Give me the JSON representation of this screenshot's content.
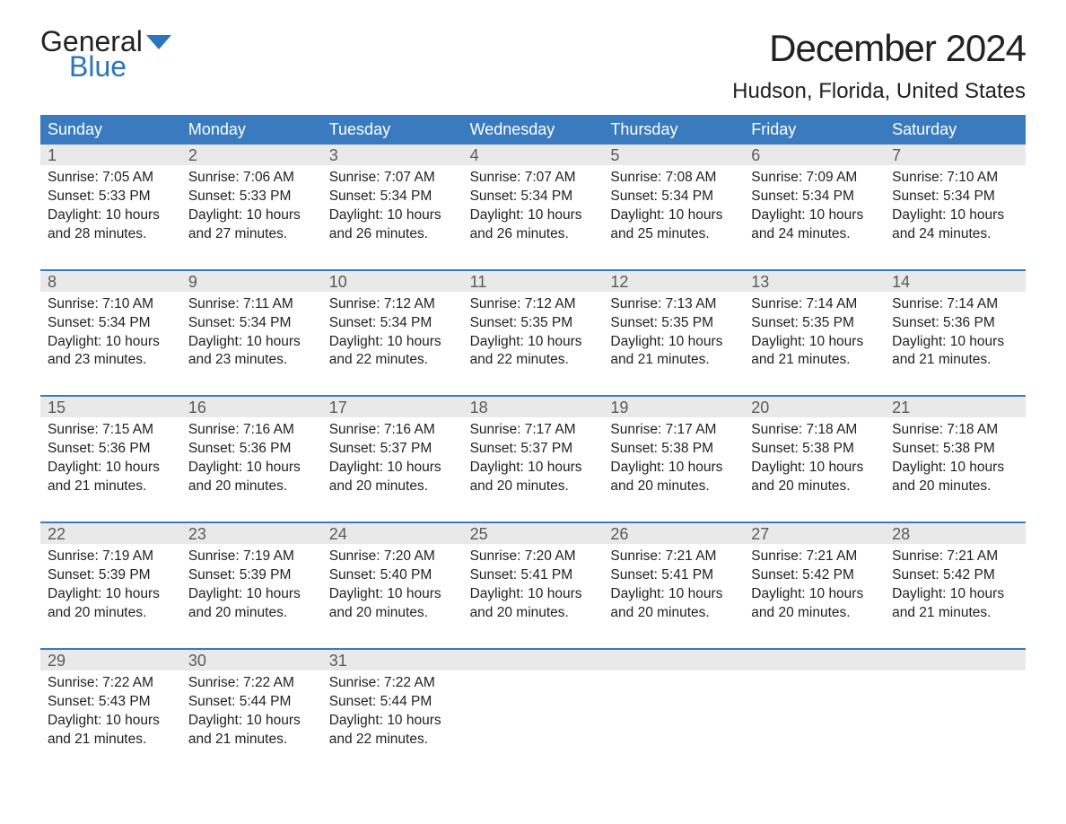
{
  "logo": {
    "line1": "General",
    "line2": "Blue",
    "color_general": "#222222",
    "color_blue": "#2a75bb",
    "flag_fill": "#2a75bb"
  },
  "header": {
    "month_title": "December 2024",
    "location": "Hudson, Florida, United States"
  },
  "styling": {
    "header_bg": "#3a7bbf",
    "header_text": "#ffffff",
    "daynum_bg": "#e9e9e9",
    "daynum_color": "#5a5a5a",
    "body_text": "#222222",
    "week_border": "#3a7bbf",
    "background": "#ffffff",
    "font_family": "Arial, Helvetica, sans-serif",
    "month_title_fontsize": 42,
    "location_fontsize": 24,
    "dayheader_fontsize": 18,
    "daynum_fontsize": 18,
    "daydata_fontsize": 15.5
  },
  "day_names": [
    "Sunday",
    "Monday",
    "Tuesday",
    "Wednesday",
    "Thursday",
    "Friday",
    "Saturday"
  ],
  "weeks": [
    [
      {
        "num": "1",
        "sunrise": "7:05 AM",
        "sunset": "5:33 PM",
        "daylight": "10 hours and 28 minutes."
      },
      {
        "num": "2",
        "sunrise": "7:06 AM",
        "sunset": "5:33 PM",
        "daylight": "10 hours and 27 minutes."
      },
      {
        "num": "3",
        "sunrise": "7:07 AM",
        "sunset": "5:34 PM",
        "daylight": "10 hours and 26 minutes."
      },
      {
        "num": "4",
        "sunrise": "7:07 AM",
        "sunset": "5:34 PM",
        "daylight": "10 hours and 26 minutes."
      },
      {
        "num": "5",
        "sunrise": "7:08 AM",
        "sunset": "5:34 PM",
        "daylight": "10 hours and 25 minutes."
      },
      {
        "num": "6",
        "sunrise": "7:09 AM",
        "sunset": "5:34 PM",
        "daylight": "10 hours and 24 minutes."
      },
      {
        "num": "7",
        "sunrise": "7:10 AM",
        "sunset": "5:34 PM",
        "daylight": "10 hours and 24 minutes."
      }
    ],
    [
      {
        "num": "8",
        "sunrise": "7:10 AM",
        "sunset": "5:34 PM",
        "daylight": "10 hours and 23 minutes."
      },
      {
        "num": "9",
        "sunrise": "7:11 AM",
        "sunset": "5:34 PM",
        "daylight": "10 hours and 23 minutes."
      },
      {
        "num": "10",
        "sunrise": "7:12 AM",
        "sunset": "5:34 PM",
        "daylight": "10 hours and 22 minutes."
      },
      {
        "num": "11",
        "sunrise": "7:12 AM",
        "sunset": "5:35 PM",
        "daylight": "10 hours and 22 minutes."
      },
      {
        "num": "12",
        "sunrise": "7:13 AM",
        "sunset": "5:35 PM",
        "daylight": "10 hours and 21 minutes."
      },
      {
        "num": "13",
        "sunrise": "7:14 AM",
        "sunset": "5:35 PM",
        "daylight": "10 hours and 21 minutes."
      },
      {
        "num": "14",
        "sunrise": "7:14 AM",
        "sunset": "5:36 PM",
        "daylight": "10 hours and 21 minutes."
      }
    ],
    [
      {
        "num": "15",
        "sunrise": "7:15 AM",
        "sunset": "5:36 PM",
        "daylight": "10 hours and 21 minutes."
      },
      {
        "num": "16",
        "sunrise": "7:16 AM",
        "sunset": "5:36 PM",
        "daylight": "10 hours and 20 minutes."
      },
      {
        "num": "17",
        "sunrise": "7:16 AM",
        "sunset": "5:37 PM",
        "daylight": "10 hours and 20 minutes."
      },
      {
        "num": "18",
        "sunrise": "7:17 AM",
        "sunset": "5:37 PM",
        "daylight": "10 hours and 20 minutes."
      },
      {
        "num": "19",
        "sunrise": "7:17 AM",
        "sunset": "5:38 PM",
        "daylight": "10 hours and 20 minutes."
      },
      {
        "num": "20",
        "sunrise": "7:18 AM",
        "sunset": "5:38 PM",
        "daylight": "10 hours and 20 minutes."
      },
      {
        "num": "21",
        "sunrise": "7:18 AM",
        "sunset": "5:38 PM",
        "daylight": "10 hours and 20 minutes."
      }
    ],
    [
      {
        "num": "22",
        "sunrise": "7:19 AM",
        "sunset": "5:39 PM",
        "daylight": "10 hours and 20 minutes."
      },
      {
        "num": "23",
        "sunrise": "7:19 AM",
        "sunset": "5:39 PM",
        "daylight": "10 hours and 20 minutes."
      },
      {
        "num": "24",
        "sunrise": "7:20 AM",
        "sunset": "5:40 PM",
        "daylight": "10 hours and 20 minutes."
      },
      {
        "num": "25",
        "sunrise": "7:20 AM",
        "sunset": "5:41 PM",
        "daylight": "10 hours and 20 minutes."
      },
      {
        "num": "26",
        "sunrise": "7:21 AM",
        "sunset": "5:41 PM",
        "daylight": "10 hours and 20 minutes."
      },
      {
        "num": "27",
        "sunrise": "7:21 AM",
        "sunset": "5:42 PM",
        "daylight": "10 hours and 20 minutes."
      },
      {
        "num": "28",
        "sunrise": "7:21 AM",
        "sunset": "5:42 PM",
        "daylight": "10 hours and 21 minutes."
      }
    ],
    [
      {
        "num": "29",
        "sunrise": "7:22 AM",
        "sunset": "5:43 PM",
        "daylight": "10 hours and 21 minutes."
      },
      {
        "num": "30",
        "sunrise": "7:22 AM",
        "sunset": "5:44 PM",
        "daylight": "10 hours and 21 minutes."
      },
      {
        "num": "31",
        "sunrise": "7:22 AM",
        "sunset": "5:44 PM",
        "daylight": "10 hours and 22 minutes."
      },
      null,
      null,
      null,
      null
    ]
  ],
  "labels": {
    "sunrise_prefix": "Sunrise: ",
    "sunset_prefix": "Sunset: ",
    "daylight_prefix": "Daylight: "
  }
}
